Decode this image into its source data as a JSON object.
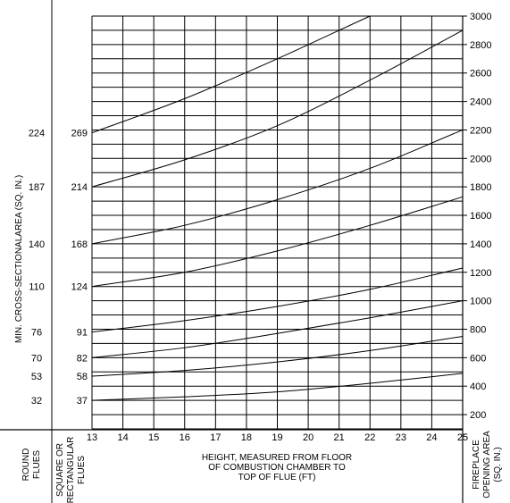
{
  "chart_data": {
    "type": "line",
    "x_ticks": [
      13,
      14,
      15,
      16,
      17,
      18,
      19,
      20,
      21,
      22,
      23,
      24,
      25
    ],
    "y_right_ticks": [
      200,
      400,
      600,
      800,
      1000,
      1200,
      1400,
      1600,
      1800,
      2000,
      2200,
      2400,
      2600,
      2800,
      3000
    ],
    "ylim": [
      100,
      3000
    ],
    "xlim": [
      13,
      25
    ],
    "grid": true,
    "xlabel_lines": [
      "HEIGHT, MEASURED FROM FLOOR",
      "OF COMBUSTION CHAMBER TO",
      "TOP OF FLUE (FT)"
    ],
    "ylabel_left": "MIN. CROSS-SECTIONALAREA (SQ. IN.)",
    "ylabel_right_lines": [
      "FIREPLACE",
      "OPENING AREA",
      "(SQ. IN.)"
    ],
    "col_round_lines": [
      "ROUND",
      "FLUES"
    ],
    "col_square_lines": [
      "SQUARE OR",
      "RECTANGULAR",
      "FLUES"
    ],
    "series": [
      {
        "round": "32",
        "square": "37",
        "points": [
          [
            13,
            300
          ],
          [
            16,
            325
          ],
          [
            19,
            360
          ],
          [
            22,
            420
          ],
          [
            25,
            490
          ]
        ]
      },
      {
        "round": "53",
        "square": "58",
        "points": [
          [
            13,
            470
          ],
          [
            16,
            510
          ],
          [
            19,
            570
          ],
          [
            22,
            650
          ],
          [
            25,
            750
          ]
        ]
      },
      {
        "round": "70",
        "square": "82",
        "points": [
          [
            13,
            600
          ],
          [
            16,
            670
          ],
          [
            19,
            770
          ],
          [
            22,
            880
          ],
          [
            25,
            1000
          ]
        ]
      },
      {
        "round": "76",
        "square": "91",
        "points": [
          [
            13,
            780
          ],
          [
            16,
            860
          ],
          [
            19,
            960
          ],
          [
            22,
            1080
          ],
          [
            25,
            1230
          ]
        ]
      },
      {
        "round": "110",
        "square": "124",
        "points": [
          [
            13,
            1100
          ],
          [
            16,
            1200
          ],
          [
            19,
            1350
          ],
          [
            22,
            1530
          ],
          [
            25,
            1730
          ]
        ]
      },
      {
        "round": "140",
        "square": "168",
        "points": [
          [
            13,
            1400
          ],
          [
            16,
            1530
          ],
          [
            19,
            1710
          ],
          [
            22,
            1930
          ],
          [
            25,
            2200
          ]
        ]
      },
      {
        "round": "187",
        "square": "214",
        "points": [
          [
            13,
            1800
          ],
          [
            16,
            1990
          ],
          [
            19,
            2230
          ],
          [
            22,
            2550
          ],
          [
            25,
            2900
          ]
        ]
      },
      {
        "round": "224",
        "square": "269",
        "points": [
          [
            13,
            2180
          ],
          [
            16,
            2420
          ],
          [
            19,
            2700
          ],
          [
            21,
            2900
          ],
          [
            22,
            3000
          ]
        ]
      }
    ]
  }
}
